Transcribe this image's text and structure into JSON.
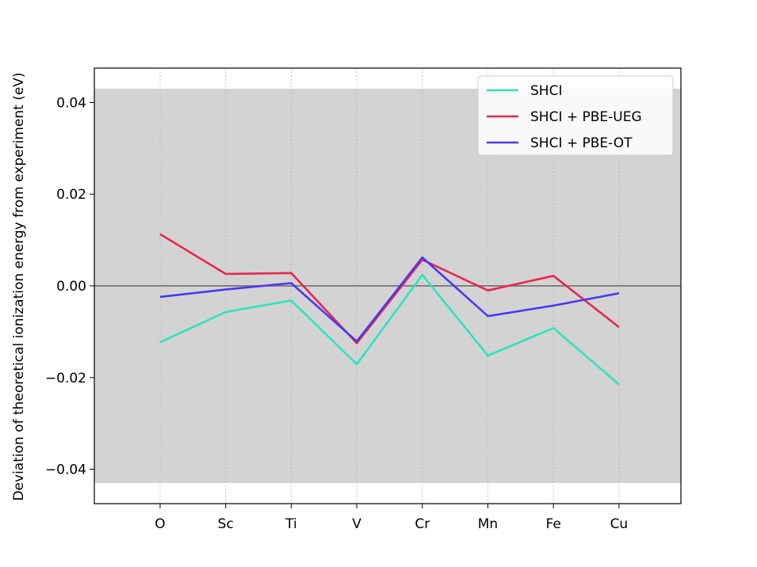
{
  "chart_data": {
    "type": "line",
    "title": "",
    "xlabel": "",
    "ylabel": "Deviation of theoretical ionization energy from experiment (eV)",
    "categories": [
      "O",
      "Sc",
      "Ti",
      "V",
      "Cr",
      "Mn",
      "Fe",
      "Cu"
    ],
    "ylim": [
      -0.0475,
      0.0475
    ],
    "yticks": [
      0.04,
      0.02,
      0.0,
      -0.02,
      -0.04
    ],
    "ytick_labels": [
      "0.04",
      "0.02",
      "0.00",
      "−0.02",
      "−0.04"
    ],
    "shaded_band": [
      -0.043,
      0.043
    ],
    "shaded_band_color": "#d3d3d3",
    "zero_line_color": "#808080",
    "grid": "vertical-dotted",
    "legend_position": "top-right",
    "series": [
      {
        "name": "SHCI",
        "color": "#2de3c0",
        "values": [
          -0.0123,
          -0.0057,
          -0.0032,
          -0.0171,
          0.0024,
          -0.0152,
          -0.0092,
          -0.0215
        ]
      },
      {
        "name": "SHCI + PBE-UEG",
        "color": "#e8264e",
        "values": [
          0.0113,
          0.0026,
          0.0028,
          -0.0125,
          0.0057,
          -0.001,
          0.0022,
          -0.009
        ]
      },
      {
        "name": "SHCI + PBE-OT",
        "color": "#4a38f2",
        "values": [
          -0.0024,
          -0.0008,
          0.0006,
          -0.0121,
          0.0062,
          -0.0066,
          -0.0043,
          -0.0016
        ]
      }
    ]
  }
}
